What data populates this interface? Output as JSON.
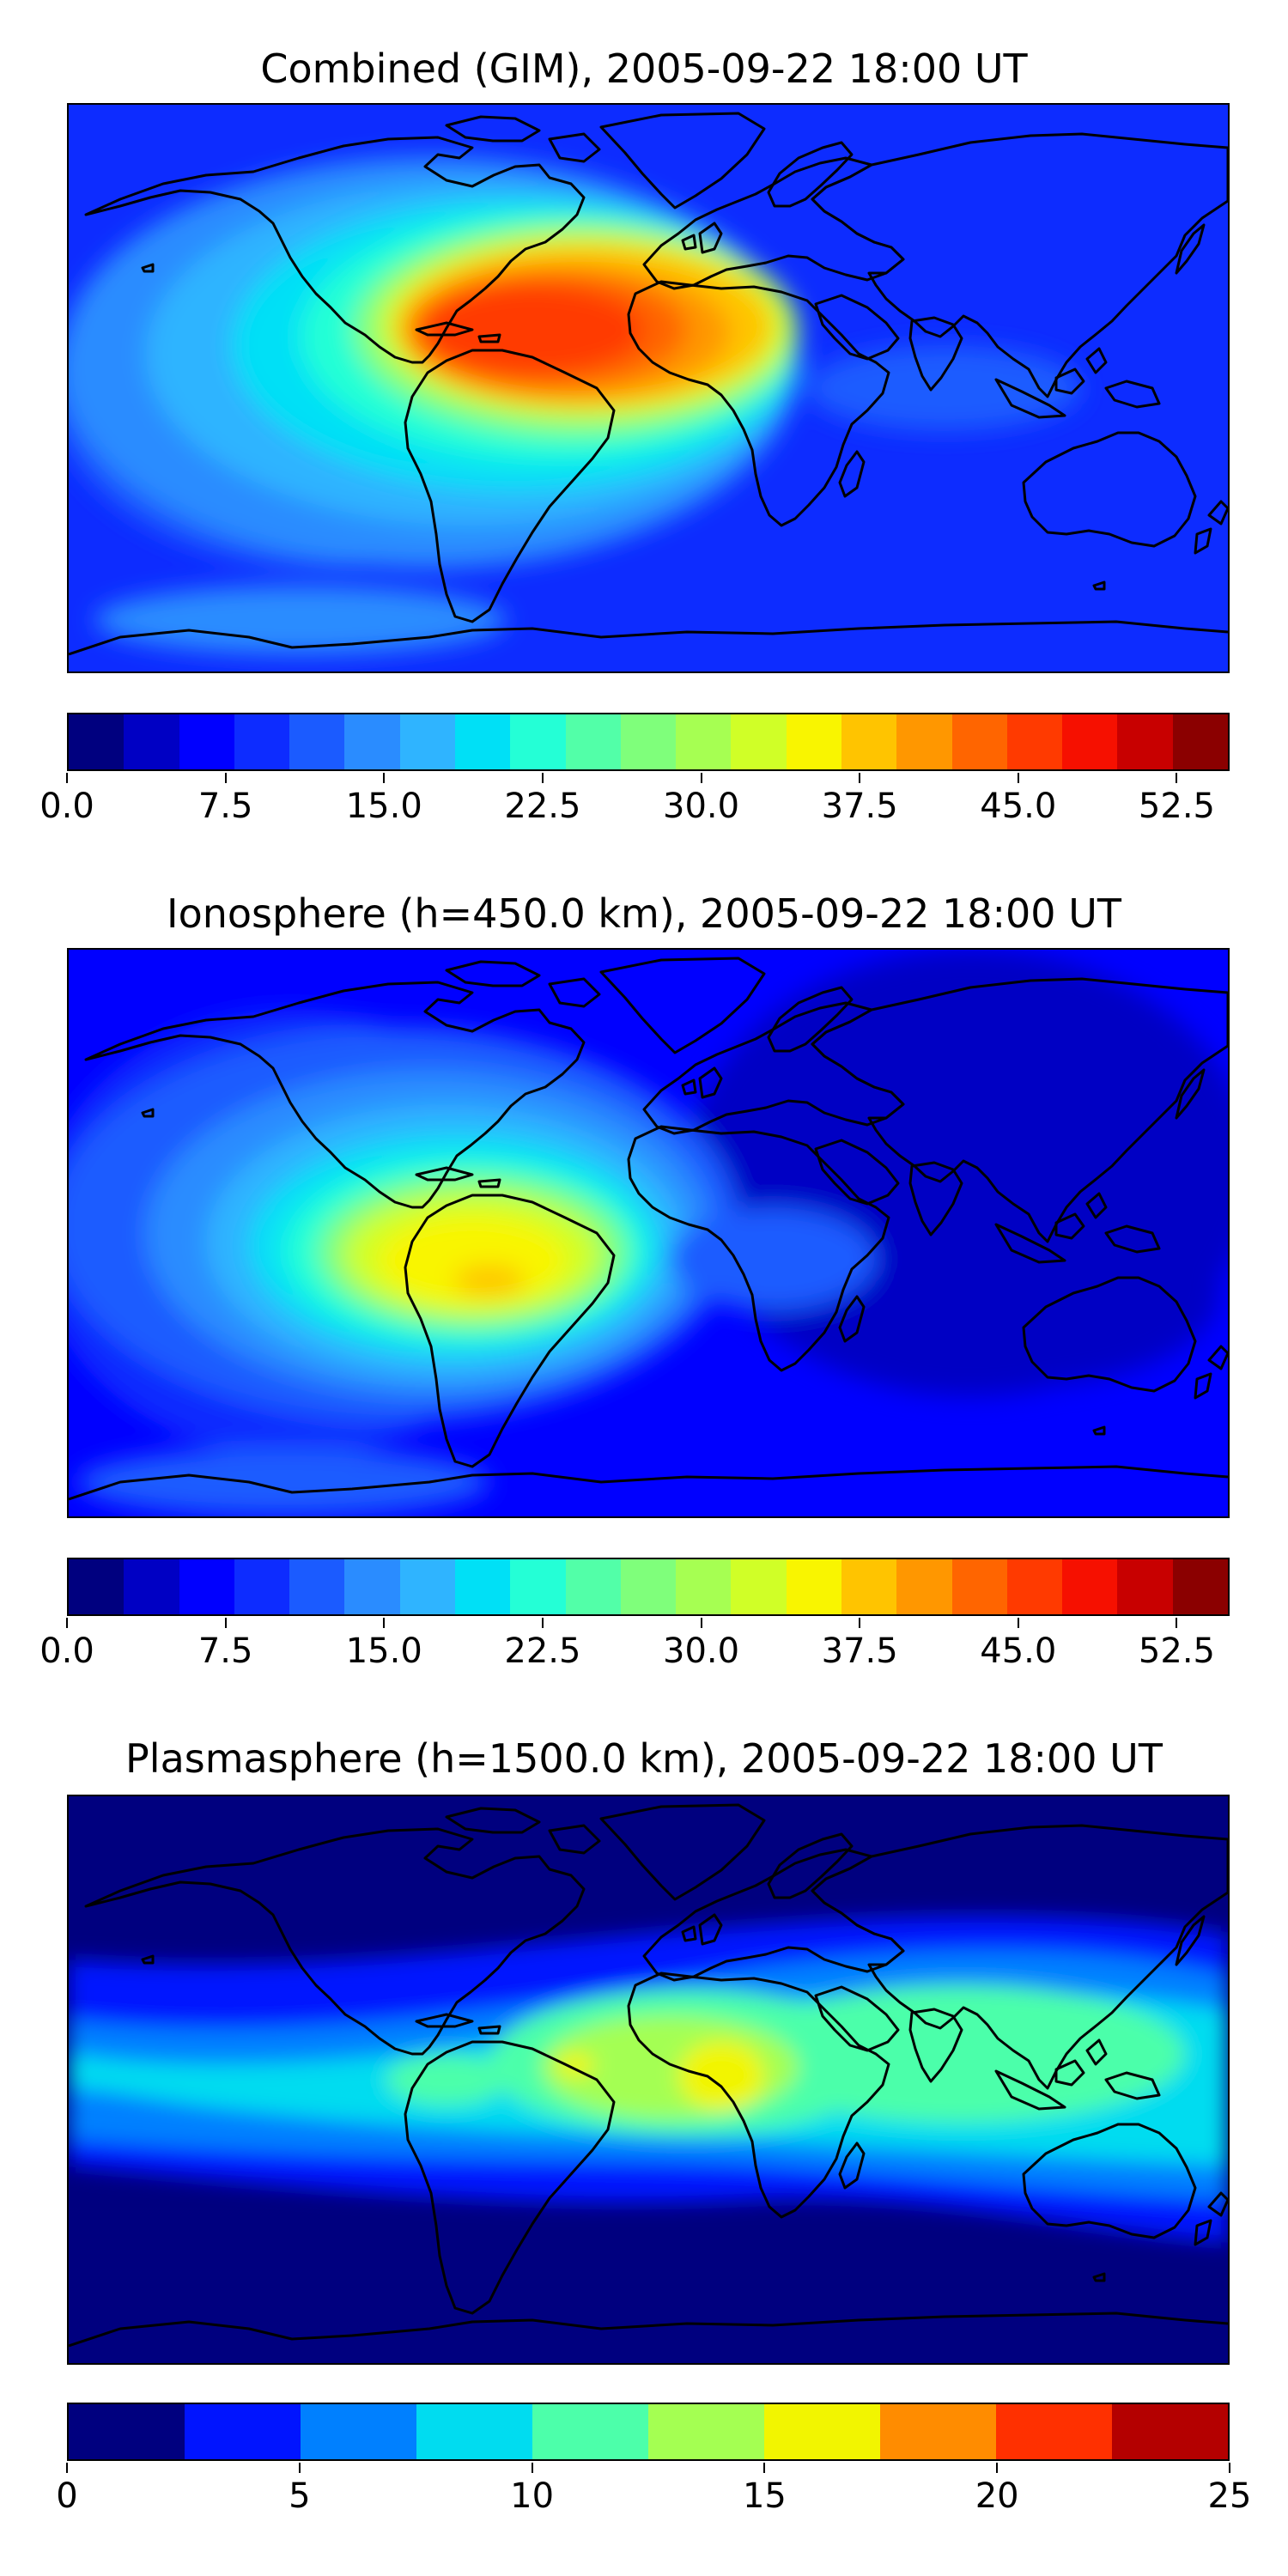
{
  "panels": [
    {
      "title": "Combined (GIM), 2005-09-22 18:00 UT",
      "colormap": {
        "colors": [
          "#00007f",
          "#0000c4",
          "#0000ff",
          "#0d2cff",
          "#1b5bff",
          "#2a8cff",
          "#2fb4ff",
          "#00e0f6",
          "#24ffd6",
          "#52ffa8",
          "#7fff7b",
          "#a6ff52",
          "#d0ff27",
          "#f9f500",
          "#ffc400",
          "#ff9700",
          "#ff6500",
          "#ff3a00",
          "#f61000",
          "#c80000",
          "#8b0000"
        ],
        "ticks": [
          "0.0",
          "7.5",
          "15.0",
          "22.5",
          "30.0",
          "37.5",
          "45.0",
          "52.5"
        ],
        "tick_values": [
          0,
          7.5,
          15,
          22.5,
          30,
          37.5,
          45,
          52.5
        ],
        "range": [
          0,
          55
        ]
      }
    },
    {
      "title": "Ionosphere  (h=450.0 km), 2005-09-22 18:00 UT",
      "colormap": {
        "colors": [
          "#00007f",
          "#0000c4",
          "#0000ff",
          "#0d2cff",
          "#1b5bff",
          "#2a8cff",
          "#2fb4ff",
          "#00e0f6",
          "#24ffd6",
          "#52ffa8",
          "#7fff7b",
          "#a6ff52",
          "#d0ff27",
          "#f9f500",
          "#ffc400",
          "#ff9700",
          "#ff6500",
          "#ff3a00",
          "#f61000",
          "#c80000",
          "#8b0000"
        ],
        "ticks": [
          "0.0",
          "7.5",
          "15.0",
          "22.5",
          "30.0",
          "37.5",
          "45.0",
          "52.5"
        ],
        "tick_values": [
          0,
          7.5,
          15,
          22.5,
          30,
          37.5,
          45,
          52.5
        ],
        "range": [
          0,
          55
        ]
      }
    },
    {
      "title": "Plasmasphere (h=1500.0 km), 2005-09-22 18:00 UT",
      "colormap": {
        "colors": [
          "#00007f",
          "#0014ff",
          "#0080ff",
          "#00dcf0",
          "#4cffaa",
          "#a4ff52",
          "#f2f500",
          "#ff8c00",
          "#ff3000",
          "#b40000"
        ],
        "ticks": [
          "0",
          "5",
          "10",
          "15",
          "20",
          "25"
        ],
        "tick_values": [
          0,
          5,
          10,
          15,
          20,
          25
        ],
        "range": [
          0,
          25
        ]
      }
    }
  ]
}
